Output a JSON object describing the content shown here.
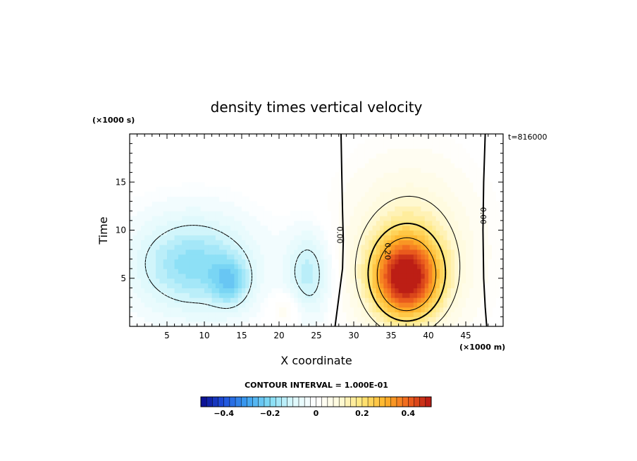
{
  "chart_data": {
    "type": "heatmap",
    "title": "density times vertical velocity",
    "xlabel": "X coordinate",
    "ylabel": "Time",
    "x_unit": "(×1000 m)",
    "y_unit": "(×1000 s)",
    "timestamp": "t=816000",
    "xlim": [
      0,
      50
    ],
    "ylim": [
      0,
      20
    ],
    "x_ticks": [
      5,
      10,
      15,
      20,
      25,
      30,
      35,
      40,
      45
    ],
    "y_ticks": [
      5,
      10,
      15
    ],
    "contour_labels": [
      "0.00",
      "0.00",
      "0.20"
    ],
    "contour_interval_text": "CONTOUR INTERVAL = 1.000E-01",
    "colorbar": {
      "min": -0.5,
      "max": 0.5,
      "levels": 40,
      "tick_values": [
        -0.4,
        -0.2,
        0,
        0.2,
        0.4
      ],
      "tick_labels": [
        "−0.4",
        "−0.2",
        "0",
        "0.2",
        "0.4"
      ],
      "colors": [
        "#0a0a8c",
        "#1e50dc",
        "#3ca0f0",
        "#82dcf5",
        "#dcf8fc",
        "#ffffff",
        "#fffadc",
        "#ffe678",
        "#ffb428",
        "#f0641e",
        "#b41414"
      ]
    },
    "features": [
      {
        "kind": "anomaly",
        "center": [
          8.5,
          6.5
        ],
        "radius": [
          8,
          5
        ],
        "amplitude": -0.19
      },
      {
        "kind": "anomaly",
        "center": [
          13.5,
          4.5
        ],
        "radius": [
          2.5,
          2.5
        ],
        "amplitude": -0.13
      },
      {
        "kind": "anomaly",
        "center": [
          24,
          5.5
        ],
        "radius": [
          3,
          4.5
        ],
        "amplitude": -0.14
      },
      {
        "kind": "anomaly",
        "center": [
          37,
          5
        ],
        "radius": [
          4.5,
          4.2
        ],
        "amplitude": 0.42
      },
      {
        "kind": "anomaly",
        "center": [
          37.5,
          8
        ],
        "radius": [
          8,
          8
        ],
        "amplitude": 0.15
      },
      {
        "kind": "anomaly",
        "center": [
          21,
          2
        ],
        "radius": [
          2,
          1.8
        ],
        "amplitude": 0.06
      }
    ]
  }
}
